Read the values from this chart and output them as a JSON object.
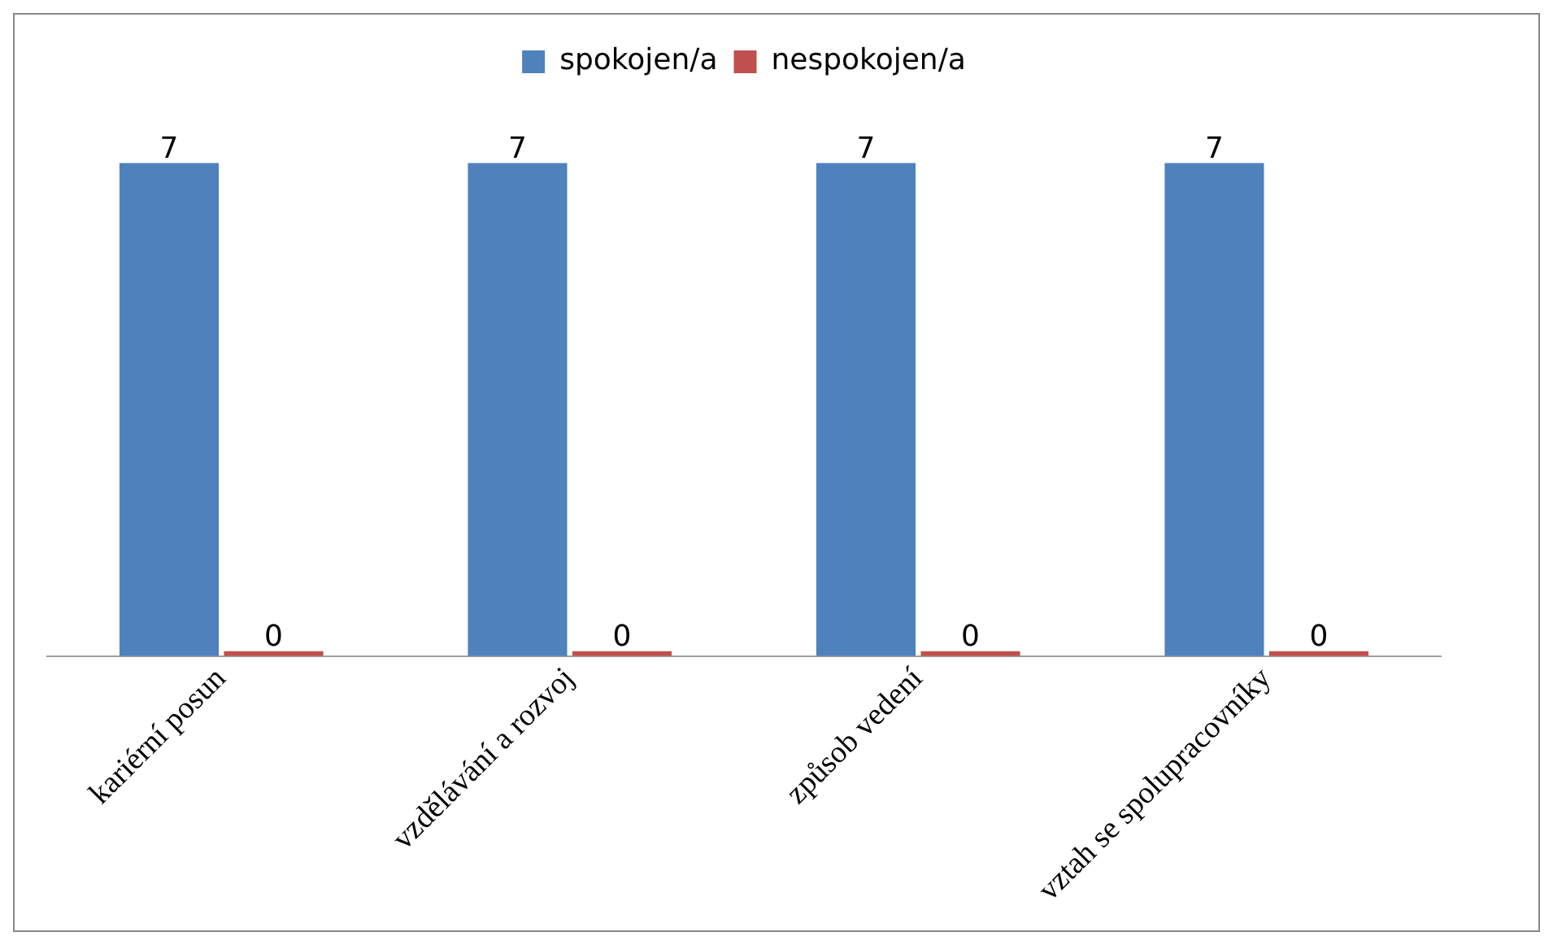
{
  "chart_data": {
    "type": "bar",
    "categories": [
      "kariérní posun",
      "vzdělávání a rozvoj",
      "způsob vedení",
      "vztah se spolupracovníky"
    ],
    "series": [
      {
        "name": "spokojen/a",
        "color": "#4f81bd",
        "values": [
          7,
          7,
          7,
          7
        ]
      },
      {
        "name": "nespokojen/a",
        "color": "#c0504d",
        "values": [
          0,
          0,
          0,
          0
        ]
      }
    ],
    "data_labels": true,
    "legend": "top",
    "grid": false,
    "tick_labels": "x"
  }
}
